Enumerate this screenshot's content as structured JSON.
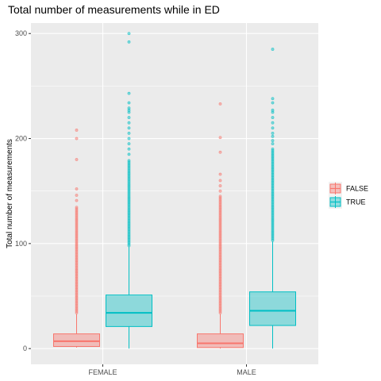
{
  "chart_data": {
    "type": "boxplot",
    "title": "Total number of measurements while in ED",
    "xlabel": "",
    "ylabel": "Total number of measurements",
    "categories": [
      "FEMALE",
      "MALE"
    ],
    "ylim": [
      -15,
      310
    ],
    "yticks": [
      0,
      100,
      200,
      300
    ],
    "grid": true,
    "legend_position": "right",
    "series": [
      {
        "name": "FALSE",
        "color": "#f8766d",
        "boxes": [
          {
            "category": "FEMALE",
            "min": 1,
            "q1": 2,
            "median": 7,
            "q3": 14,
            "max": 33,
            "outliers_dense_to": 135,
            "outliers_sparse": [
              141,
              146,
              152,
              180,
              200,
              208
            ]
          },
          {
            "category": "MALE",
            "min": 0,
            "q1": 1,
            "median": 5,
            "q3": 14,
            "max": 33,
            "outliers_dense_to": 145,
            "outliers_sparse": [
              150,
              155,
              160,
              166,
              187,
              201,
              233
            ]
          }
        ]
      },
      {
        "name": "TRUE",
        "color": "#00bfc4",
        "boxes": [
          {
            "category": "FEMALE",
            "min": 0,
            "q1": 21,
            "median": 34,
            "q3": 51,
            "max": 97,
            "outliers_dense_to": 180,
            "outliers_sparse": [
              185,
              190,
              195,
              200,
              205,
              210,
              215,
              220,
              225,
              227,
              229,
              234,
              243,
              292,
              300
            ]
          },
          {
            "category": "MALE",
            "min": 0,
            "q1": 22,
            "median": 36,
            "q3": 54,
            "max": 102,
            "outliers_dense_to": 190,
            "outliers_sparse": [
              195,
              198,
              202,
              205,
              210,
              215,
              220,
              225,
              227,
              234,
              238,
              285
            ]
          }
        ]
      }
    ]
  }
}
